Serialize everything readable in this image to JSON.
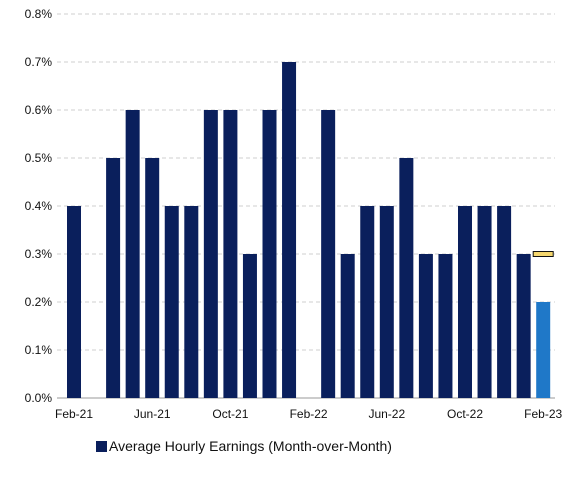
{
  "chart_data": {
    "type": "bar",
    "ylim": [
      0,
      0.8
    ],
    "y_ticks": [
      "0.0%",
      "0.1%",
      "0.2%",
      "0.3%",
      "0.4%",
      "0.5%",
      "0.6%",
      "0.7%",
      "0.8%"
    ],
    "x_tick_labels": [
      "Feb-21",
      "Jun-21",
      "Oct-21",
      "Feb-22",
      "Jun-22",
      "Oct-22",
      "Feb-23"
    ],
    "grid": "horizontal dashed",
    "legend_position": "bottom",
    "categories": [
      "Feb-21",
      "Mar-21",
      "Apr-21",
      "May-21",
      "Jun-21",
      "Jul-21",
      "Aug-21",
      "Sep-21",
      "Oct-21",
      "Nov-21",
      "Dec-21",
      "Jan-22",
      "Feb-22",
      "Mar-22",
      "Apr-22",
      "May-22",
      "Jun-22",
      "Jul-22",
      "Aug-22",
      "Sep-22",
      "Oct-22",
      "Nov-22",
      "Dec-22",
      "Jan-23",
      "Feb-23"
    ],
    "series": [
      {
        "name": "Average Hourly Earnings (Month-over-Month)",
        "color": "#0a1f5c",
        "values": [
          0.4,
          null,
          0.5,
          0.6,
          0.5,
          0.4,
          0.4,
          0.6,
          0.6,
          0.3,
          0.6,
          0.7,
          null,
          0.6,
          0.3,
          0.4,
          0.4,
          0.5,
          0.3,
          0.3,
          0.4,
          0.4,
          0.4,
          0.3,
          0.2
        ]
      }
    ],
    "highlight": {
      "category": "Feb-23",
      "bar_color": "#1f78c8",
      "marker_value": 0.3,
      "marker_color": "#f5d76e"
    }
  }
}
